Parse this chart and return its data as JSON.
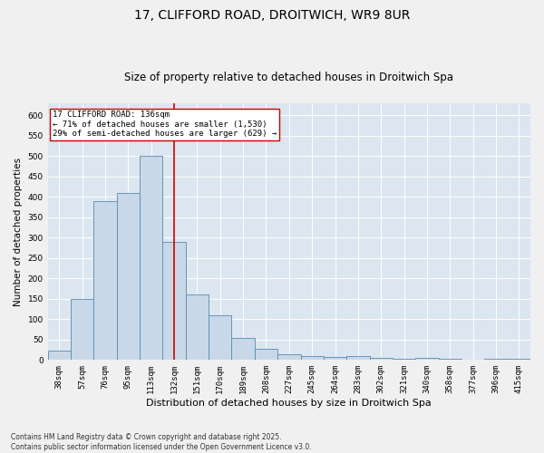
{
  "title1": "17, CLIFFORD ROAD, DROITWICH, WR9 8UR",
  "title2": "Size of property relative to detached houses in Droitwich Spa",
  "xlabel": "Distribution of detached houses by size in Droitwich Spa",
  "ylabel": "Number of detached properties",
  "categories": [
    "38sqm",
    "57sqm",
    "76sqm",
    "95sqm",
    "113sqm",
    "132sqm",
    "151sqm",
    "170sqm",
    "189sqm",
    "208sqm",
    "227sqm",
    "245sqm",
    "264sqm",
    "283sqm",
    "302sqm",
    "321sqm",
    "340sqm",
    "358sqm",
    "377sqm",
    "396sqm",
    "415sqm"
  ],
  "values": [
    22,
    150,
    390,
    410,
    500,
    290,
    160,
    110,
    55,
    28,
    15,
    10,
    7,
    9,
    5,
    3,
    5,
    4,
    1,
    2,
    2
  ],
  "bar_color": "#c8d8e8",
  "bar_edge_color": "#5a8ab0",
  "highlight_index": 5,
  "highlight_color": "#cc0000",
  "annotation_line1": "17 CLIFFORD ROAD: 136sqm",
  "annotation_line2": "← 71% of detached houses are smaller (1,530)",
  "annotation_line3": "29% of semi-detached houses are larger (629) →",
  "annotation_box_color": "#ffffff",
  "annotation_box_edge": "#cc0000",
  "ylim": [
    0,
    630
  ],
  "yticks": [
    0,
    50,
    100,
    150,
    200,
    250,
    300,
    350,
    400,
    450,
    500,
    550,
    600
  ],
  "bg_color": "#dce6f0",
  "fig_color": "#f0f0f0",
  "grid_color": "#ffffff",
  "footnote": "Contains HM Land Registry data © Crown copyright and database right 2025.\nContains public sector information licensed under the Open Government Licence v3.0.",
  "title1_fontsize": 10,
  "title2_fontsize": 8.5,
  "xlabel_fontsize": 8,
  "ylabel_fontsize": 7.5,
  "tick_fontsize": 6.5,
  "annotation_fontsize": 6.5,
  "footnote_fontsize": 5.5
}
